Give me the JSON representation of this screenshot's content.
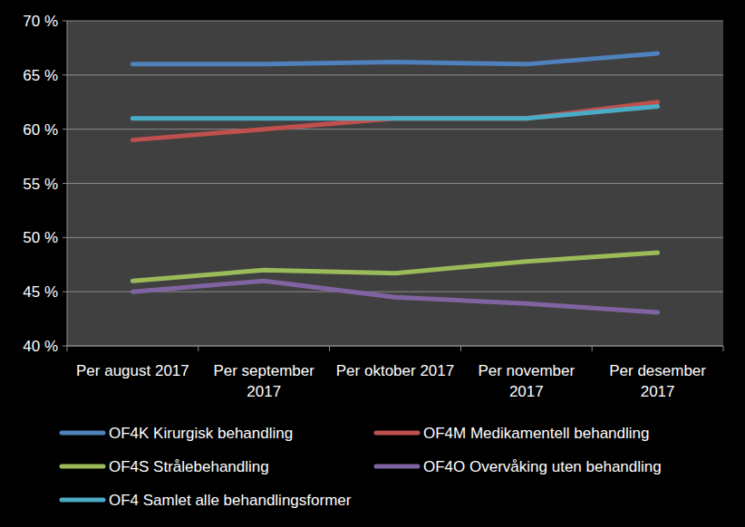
{
  "chart_data": {
    "type": "line",
    "categories": [
      "Per august 2017",
      "Per september 2017",
      "Per oktober 2017",
      "Per november 2017",
      "Per desember 2017"
    ],
    "series": [
      {
        "name": "OF4K Kirurgisk behandling",
        "color": "#4f81bd",
        "values": [
          66,
          66,
          66.2,
          66,
          67
        ]
      },
      {
        "name": "OF4M Medikamentell behandling",
        "color": "#c0504d",
        "values": [
          59,
          60,
          61,
          61,
          62.5
        ]
      },
      {
        "name": "OF4S Strålebehandling",
        "color": "#9bbb59",
        "values": [
          46,
          47,
          46.7,
          47.8,
          48.6
        ]
      },
      {
        "name": "OF4O Overvåking uten behandling",
        "color": "#8064a2",
        "values": [
          45,
          46,
          44.5,
          43.9,
          43.1
        ]
      },
      {
        "name": "OF4 Samlet alle behandlingsformer",
        "color": "#4bacc6",
        "values": [
          61,
          61,
          61,
          61,
          62.1
        ]
      }
    ],
    "ylim": [
      40,
      70
    ],
    "yticks": [
      {
        "value": 40,
        "label": "40 %"
      },
      {
        "value": 45,
        "label": "45 %"
      },
      {
        "value": 50,
        "label": "50 %"
      },
      {
        "value": 55,
        "label": "55 %"
      },
      {
        "value": 60,
        "label": "60 %"
      },
      {
        "value": 65,
        "label": "65 %"
      },
      {
        "value": 70,
        "label": "70 %"
      }
    ],
    "grid": true,
    "legend": "bottom"
  }
}
